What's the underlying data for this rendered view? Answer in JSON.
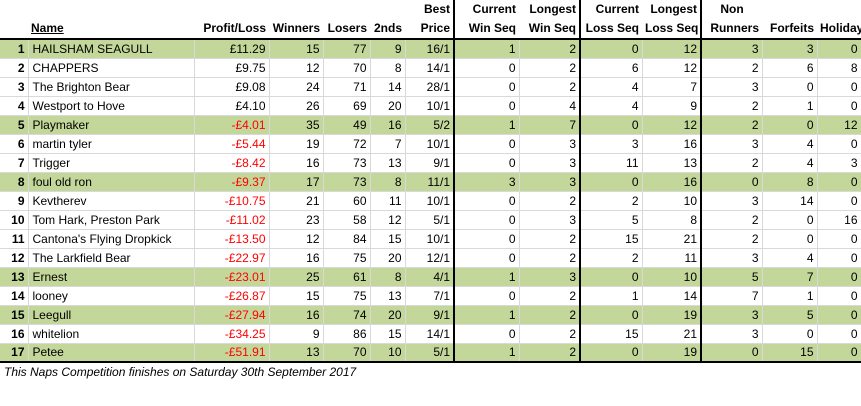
{
  "headers": {
    "rank": "",
    "name": "Name",
    "profit": "Profit/Loss",
    "winners": "Winners",
    "losers": "Losers",
    "seconds": "2nds",
    "best_price_1": "Best",
    "best_price_2": "Price",
    "cur_win_1": "Current",
    "cur_win_2": "Win Seq",
    "long_win_1": "Longest",
    "long_win_2": "Win Seq",
    "cur_loss_1": "Current",
    "cur_loss_2": "Loss Seq",
    "long_loss_1": "Longest",
    "long_loss_2": "Loss Seq",
    "non_runners_1": "Non",
    "non_runners_2": "Runners",
    "forfeits": "Forfeits",
    "holiday": "Holiday"
  },
  "rows": [
    {
      "rank": "1",
      "name": "HAILSHAM SEAGULL",
      "profit": "£11.29",
      "winners": "15",
      "losers": "77",
      "seconds": "9",
      "best_price": "16/1",
      "cur_win": "1",
      "long_win": "2",
      "cur_loss": "0",
      "long_loss": "12",
      "non_runners": "3",
      "forfeits": "3",
      "holiday": "0",
      "highlight": true,
      "negative": false
    },
    {
      "rank": "2",
      "name": "CHAPPERS",
      "profit": "£9.75",
      "winners": "12",
      "losers": "70",
      "seconds": "8",
      "best_price": "14/1",
      "cur_win": "0",
      "long_win": "2",
      "cur_loss": "6",
      "long_loss": "12",
      "non_runners": "2",
      "forfeits": "6",
      "holiday": "8",
      "highlight": false,
      "negative": false
    },
    {
      "rank": "3",
      "name": "The Brighton Bear",
      "profit": "£9.08",
      "winners": "24",
      "losers": "71",
      "seconds": "14",
      "best_price": "28/1",
      "cur_win": "0",
      "long_win": "2",
      "cur_loss": "4",
      "long_loss": "7",
      "non_runners": "3",
      "forfeits": "0",
      "holiday": "0",
      "highlight": false,
      "negative": false
    },
    {
      "rank": "4",
      "name": "Westport to Hove",
      "profit": "£4.10",
      "winners": "26",
      "losers": "69",
      "seconds": "20",
      "best_price": "10/1",
      "cur_win": "0",
      "long_win": "4",
      "cur_loss": "4",
      "long_loss": "9",
      "non_runners": "2",
      "forfeits": "1",
      "holiday": "0",
      "highlight": false,
      "negative": false
    },
    {
      "rank": "5",
      "name": "Playmaker",
      "profit": "-£4.01",
      "winners": "35",
      "losers": "49",
      "seconds": "16",
      "best_price": "5/2",
      "cur_win": "1",
      "long_win": "7",
      "cur_loss": "0",
      "long_loss": "12",
      "non_runners": "2",
      "forfeits": "0",
      "holiday": "12",
      "highlight": true,
      "negative": true
    },
    {
      "rank": "6",
      "name": "martin tyler",
      "profit": "-£5.44",
      "winners": "19",
      "losers": "72",
      "seconds": "7",
      "best_price": "10/1",
      "cur_win": "0",
      "long_win": "3",
      "cur_loss": "3",
      "long_loss": "16",
      "non_runners": "3",
      "forfeits": "4",
      "holiday": "0",
      "highlight": false,
      "negative": true
    },
    {
      "rank": "7",
      "name": "Trigger",
      "profit": "-£8.42",
      "winners": "16",
      "losers": "73",
      "seconds": "13",
      "best_price": "9/1",
      "cur_win": "0",
      "long_win": "3",
      "cur_loss": "11",
      "long_loss": "13",
      "non_runners": "2",
      "forfeits": "4",
      "holiday": "3",
      "highlight": false,
      "negative": true
    },
    {
      "rank": "8",
      "name": "foul old ron",
      "profit": "-£9.37",
      "winners": "17",
      "losers": "73",
      "seconds": "8",
      "best_price": "11/1",
      "cur_win": "3",
      "long_win": "3",
      "cur_loss": "0",
      "long_loss": "16",
      "non_runners": "0",
      "forfeits": "8",
      "holiday": "0",
      "highlight": true,
      "negative": true
    },
    {
      "rank": "9",
      "name": "Kevtherev",
      "profit": "-£10.75",
      "winners": "21",
      "losers": "60",
      "seconds": "11",
      "best_price": "10/1",
      "cur_win": "0",
      "long_win": "2",
      "cur_loss": "2",
      "long_loss": "10",
      "non_runners": "3",
      "forfeits": "14",
      "holiday": "0",
      "highlight": false,
      "negative": true
    },
    {
      "rank": "10",
      "name": "Tom Hark, Preston Park",
      "profit": "-£11.02",
      "winners": "23",
      "losers": "58",
      "seconds": "12",
      "best_price": "5/1",
      "cur_win": "0",
      "long_win": "3",
      "cur_loss": "5",
      "long_loss": "8",
      "non_runners": "2",
      "forfeits": "0",
      "holiday": "16",
      "highlight": false,
      "negative": true
    },
    {
      "rank": "11",
      "name": "Cantona's Flying Dropkick",
      "profit": "-£13.50",
      "winners": "12",
      "losers": "84",
      "seconds": "15",
      "best_price": "10/1",
      "cur_win": "0",
      "long_win": "2",
      "cur_loss": "15",
      "long_loss": "21",
      "non_runners": "2",
      "forfeits": "0",
      "holiday": "0",
      "highlight": false,
      "negative": true
    },
    {
      "rank": "12",
      "name": "The Larkfield Bear",
      "profit": "-£22.97",
      "winners": "16",
      "losers": "75",
      "seconds": "20",
      "best_price": "12/1",
      "cur_win": "0",
      "long_win": "2",
      "cur_loss": "2",
      "long_loss": "11",
      "non_runners": "3",
      "forfeits": "4",
      "holiday": "0",
      "highlight": false,
      "negative": true
    },
    {
      "rank": "13",
      "name": "Ernest",
      "profit": "-£23.01",
      "winners": "25",
      "losers": "61",
      "seconds": "8",
      "best_price": "4/1",
      "cur_win": "1",
      "long_win": "3",
      "cur_loss": "0",
      "long_loss": "10",
      "non_runners": "5",
      "forfeits": "7",
      "holiday": "0",
      "highlight": true,
      "negative": true
    },
    {
      "rank": "14",
      "name": "looney",
      "profit": "-£26.87",
      "winners": "15",
      "losers": "75",
      "seconds": "13",
      "best_price": "7/1",
      "cur_win": "0",
      "long_win": "2",
      "cur_loss": "1",
      "long_loss": "14",
      "non_runners": "7",
      "forfeits": "1",
      "holiday": "0",
      "highlight": false,
      "negative": true
    },
    {
      "rank": "15",
      "name": "Leegull",
      "profit": "-£27.94",
      "winners": "16",
      "losers": "74",
      "seconds": "20",
      "best_price": "9/1",
      "cur_win": "1",
      "long_win": "2",
      "cur_loss": "0",
      "long_loss": "19",
      "non_runners": "3",
      "forfeits": "5",
      "holiday": "0",
      "highlight": true,
      "negative": true
    },
    {
      "rank": "16",
      "name": "whitelion",
      "profit": "-£34.25",
      "winners": "9",
      "losers": "86",
      "seconds": "15",
      "best_price": "14/1",
      "cur_win": "0",
      "long_win": "2",
      "cur_loss": "15",
      "long_loss": "21",
      "non_runners": "3",
      "forfeits": "0",
      "holiday": "0",
      "highlight": false,
      "negative": true
    },
    {
      "rank": "17",
      "name": "Petee",
      "profit": "-£51.91",
      "winners": "13",
      "losers": "70",
      "seconds": "10",
      "best_price": "5/1",
      "cur_win": "1",
      "long_win": "2",
      "cur_loss": "0",
      "long_loss": "19",
      "non_runners": "0",
      "forfeits": "15",
      "holiday": "0",
      "highlight": true,
      "negative": true
    }
  ],
  "footer": "This Naps Competition finishes on Saturday 30th September 2017",
  "colors": {
    "highlight_row": "#c4d79b",
    "negative_text": "#ff0000",
    "grid": "#d9d9d9",
    "thick_border": "#000000"
  }
}
